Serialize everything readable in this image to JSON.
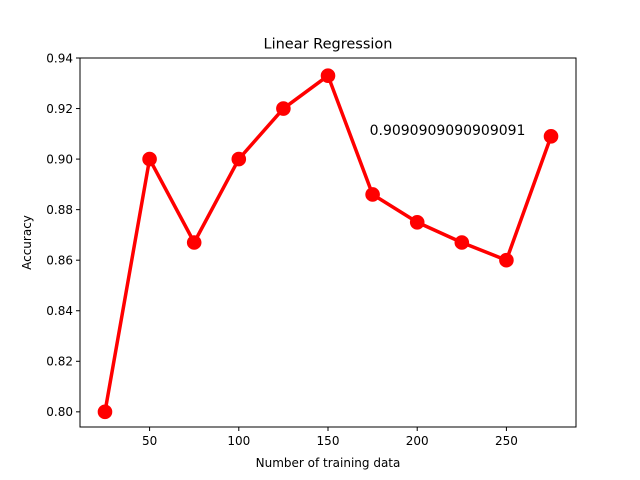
{
  "chart_data": {
    "type": "line",
    "title": "Linear Regression",
    "xlabel": "Number of training data",
    "ylabel": "Accuracy",
    "xlim": [
      11,
      289
    ],
    "ylim": [
      0.794,
      0.94
    ],
    "xticks": [
      50,
      100,
      150,
      200,
      250
    ],
    "xtick_labels": [
      "50",
      "100",
      "150",
      "200",
      "250"
    ],
    "yticks": [
      0.8,
      0.82,
      0.84,
      0.86,
      0.88,
      0.9,
      0.92,
      0.94
    ],
    "ytick_labels": [
      "0.80",
      "0.82",
      "0.84",
      "0.86",
      "0.88",
      "0.90",
      "0.92",
      "0.94"
    ],
    "grid": false,
    "series": [
      {
        "color": "#ff0000",
        "marker": "circle",
        "x": [
          25,
          50,
          75,
          100,
          125,
          150,
          175,
          200,
          225,
          250,
          275
        ],
        "y": [
          0.8,
          0.9,
          0.867,
          0.9,
          0.92,
          0.933,
          0.886,
          0.875,
          0.867,
          0.86,
          0.909
        ]
      }
    ],
    "annotations": [
      {
        "text": "0.9090909090909091",
        "x": 175,
        "y": 0.912
      }
    ]
  }
}
